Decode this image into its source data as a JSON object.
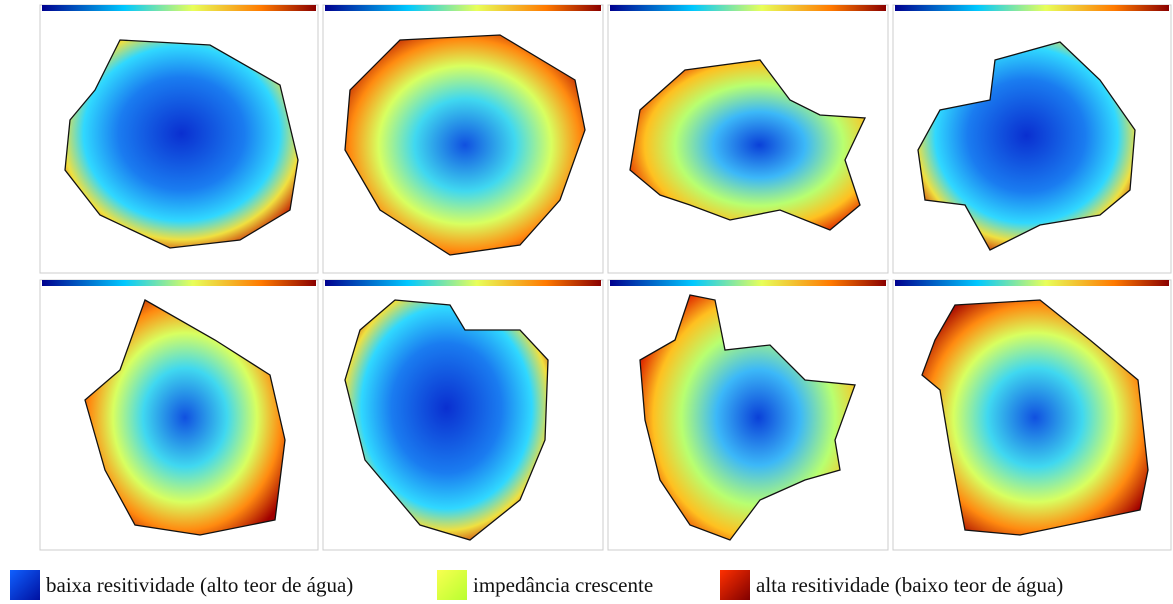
{
  "legend": {
    "items": [
      {
        "label": "baixa resitividade (alto teor de água)"
      },
      {
        "label": "impedância crescente"
      },
      {
        "label": "alta resitividade (baixo teor de água)"
      }
    ]
  }
}
